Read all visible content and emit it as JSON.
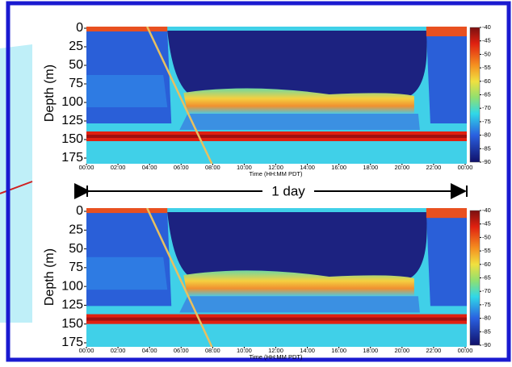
{
  "chart_data": [
    {
      "type": "heatmap",
      "ylabel": "Depth (m)",
      "xlabel": "Time (HH:MM PDT)",
      "ylim": [
        0,
        175
      ],
      "y_inverted": true,
      "yticks": [
        0,
        25,
        50,
        75,
        100,
        125,
        150,
        175
      ],
      "xlim": [
        0,
        24
      ],
      "xticks": [
        {
          "value": 0,
          "label": "00:00"
        },
        {
          "value": 2,
          "label": "02:00"
        },
        {
          "value": 4,
          "label": "04:00"
        },
        {
          "value": 6,
          "label": "06:00"
        },
        {
          "value": 8,
          "label": "08:00"
        },
        {
          "value": 10,
          "label": "10:00"
        },
        {
          "value": 12,
          "label": "12:00"
        },
        {
          "value": 14,
          "label": "14:00"
        },
        {
          "value": 16,
          "label": "16:00"
        },
        {
          "value": 18,
          "label": "18:00"
        },
        {
          "value": 20,
          "label": "20:00"
        },
        {
          "value": 22,
          "label": "22:00"
        },
        {
          "value": 24,
          "label": "00:00"
        }
      ],
      "clim": [
        -90,
        -40
      ],
      "cticks": [
        -40,
        -45,
        -50,
        -55,
        -60,
        -65,
        -70,
        -75,
        -80,
        -85,
        -90
      ]
    },
    {
      "type": "heatmap",
      "ylabel": "Depth (m)",
      "xlabel": "Time (HH:MM PDT)",
      "ylim": [
        0,
        175
      ],
      "y_inverted": true,
      "yticks": [
        0,
        25,
        50,
        75,
        100,
        125,
        150,
        175
      ],
      "xlim": [
        0,
        24
      ],
      "xticks": [
        {
          "value": 0,
          "label": "00:00"
        },
        {
          "value": 2,
          "label": "02:00"
        },
        {
          "value": 4,
          "label": "04:00"
        },
        {
          "value": 6,
          "label": "06:00"
        },
        {
          "value": 8,
          "label": "08:00"
        },
        {
          "value": 10,
          "label": "10:00"
        },
        {
          "value": 12,
          "label": "12:00"
        },
        {
          "value": 14,
          "label": "14:00"
        },
        {
          "value": 16,
          "label": "16:00"
        },
        {
          "value": 18,
          "label": "18:00"
        },
        {
          "value": 20,
          "label": "20:00"
        },
        {
          "value": 22,
          "label": "22:00"
        },
        {
          "value": 24,
          "label": "00:00"
        }
      ],
      "clim": [
        -90,
        -40
      ],
      "cticks": [
        -40,
        -45,
        -50,
        -55,
        -60,
        -65,
        -70,
        -75,
        -80,
        -85,
        -90
      ]
    }
  ],
  "annotation": {
    "text": "1 day"
  }
}
